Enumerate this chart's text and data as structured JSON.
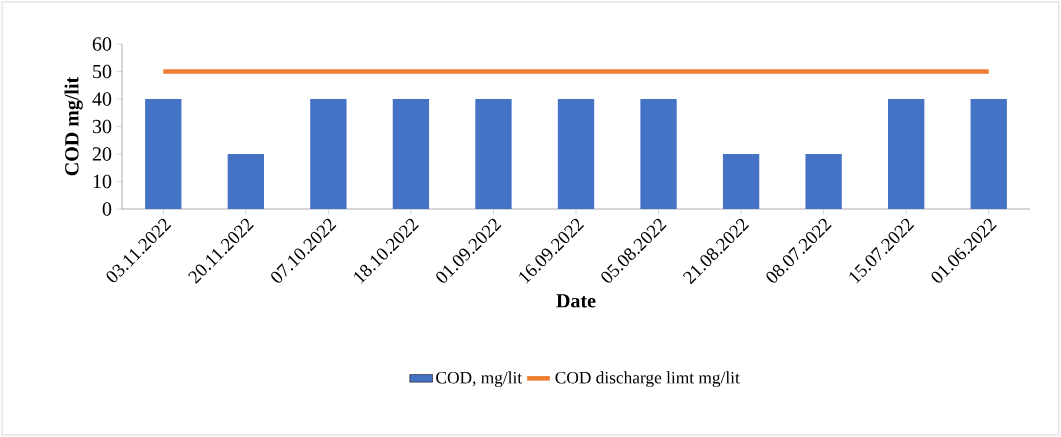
{
  "chart_data": {
    "type": "bar",
    "categories": [
      "03.11.2022",
      "20.11.2022",
      "07.10.2022",
      "18.10.2022",
      "01.09.2022",
      "16.09.2022",
      "05.08.2022",
      "21.08.2022",
      "08.07.2022",
      "15.07.2022",
      "01.06.2022"
    ],
    "series": [
      {
        "name": "COD, mg/lit",
        "color": "#4472c4",
        "values": [
          40,
          20,
          40,
          40,
          40,
          40,
          40,
          20,
          20,
          40,
          40
        ]
      },
      {
        "name": "COD discharge limt mg/lit",
        "type": "line",
        "color": "#ed7d31",
        "values": [
          50,
          50,
          50,
          50,
          50,
          50,
          50,
          50,
          50,
          50,
          50
        ]
      }
    ],
    "xlabel": "Date",
    "ylabel": "COD mg/lit",
    "ylim": [
      0,
      60
    ],
    "yticks": [
      0,
      10,
      20,
      30,
      40,
      50,
      60
    ],
    "legend": "bottom"
  }
}
